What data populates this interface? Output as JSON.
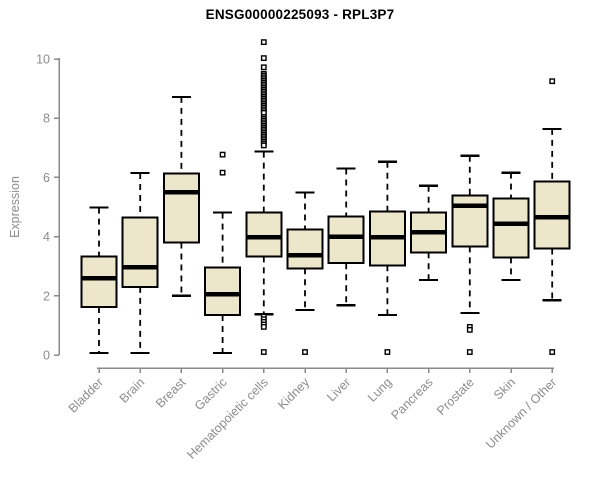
{
  "colors": {
    "background": "#ffffff",
    "box_fill": "#ece6cb",
    "box_stroke": "#000000",
    "median_color": "#000000",
    "whisker_color": "#000000",
    "outlier_stroke": "#000000",
    "outlier_fill": "#ffffff",
    "axis_color": "#8a8a8a",
    "tick_label_color": "#8c8c8c",
    "title_color": "#000000"
  },
  "chart_data": {
    "type": "box",
    "title": "ENSG00000225093 - RPL3P7",
    "xlabel": "",
    "ylabel": "Expression",
    "ylim": [
      0,
      10
    ],
    "yticks": [
      0,
      2,
      4,
      6,
      8,
      10
    ],
    "grid": false,
    "legend": false,
    "categories": [
      "Bladder",
      "Brain",
      "Breast",
      "Gastric",
      "Hematopoietic cells",
      "Kidney",
      "Liver",
      "Lung",
      "Pancreas",
      "Prostate",
      "Skin",
      "Unknown / Other"
    ],
    "series": [
      {
        "name": "Bladder",
        "low": 0.07,
        "q1": 1.62,
        "median": 2.6,
        "q3": 3.33,
        "high": 4.98,
        "outliers": []
      },
      {
        "name": "Brain",
        "low": 0.07,
        "q1": 2.3,
        "median": 2.96,
        "q3": 4.65,
        "high": 6.15,
        "outliers": []
      },
      {
        "name": "Breast",
        "low": 2.0,
        "q1": 3.8,
        "median": 5.5,
        "q3": 6.13,
        "high": 8.72,
        "outliers": []
      },
      {
        "name": "Gastric",
        "low": 0.07,
        "q1": 1.35,
        "median": 2.05,
        "q3": 2.96,
        "high": 4.81,
        "outliers": [
          6.77,
          6.16
        ]
      },
      {
        "name": "Hematopoietic cells",
        "low": 1.38,
        "q1": 3.33,
        "median": 3.97,
        "q3": 4.81,
        "high": 6.87,
        "outliers": [
          10.57,
          10.03,
          9.72,
          9.5,
          9.44,
          9.38,
          9.32,
          9.26,
          9.2,
          9.14,
          9.08,
          9.02,
          8.96,
          8.9,
          8.84,
          8.78,
          8.72,
          8.66,
          8.6,
          8.54,
          8.48,
          8.42,
          8.36,
          8.3,
          8.24,
          8.18,
          8.04,
          7.98,
          7.92,
          7.86,
          7.8,
          7.74,
          7.68,
          7.62,
          7.56,
          7.5,
          7.44,
          7.38,
          7.32,
          7.26,
          7.2,
          7.14,
          7.08,
          1.3,
          1.21,
          1.12,
          1.03,
          0.95,
          0.1
        ]
      },
      {
        "name": "Kidney",
        "low": 1.52,
        "q1": 2.93,
        "median": 3.37,
        "q3": 4.24,
        "high": 5.49,
        "outliers": [
          0.1
        ]
      },
      {
        "name": "Liver",
        "low": 1.68,
        "q1": 3.1,
        "median": 4.0,
        "q3": 4.68,
        "high": 6.3,
        "outliers": []
      },
      {
        "name": "Lung",
        "low": 1.35,
        "q1": 3.03,
        "median": 3.97,
        "q3": 4.85,
        "high": 6.53,
        "outliers": [
          0.1
        ]
      },
      {
        "name": "Pancreas",
        "low": 2.53,
        "q1": 3.47,
        "median": 4.14,
        "q3": 4.81,
        "high": 5.72,
        "outliers": []
      },
      {
        "name": "Prostate",
        "low": 1.42,
        "q1": 3.67,
        "median": 5.05,
        "q3": 5.39,
        "high": 6.73,
        "outliers": [
          0.95,
          0.85,
          0.1
        ]
      },
      {
        "name": "Skin",
        "low": 2.53,
        "q1": 3.3,
        "median": 4.44,
        "q3": 5.29,
        "high": 6.16,
        "outliers": []
      },
      {
        "name": "Unknown / Other",
        "low": 1.85,
        "q1": 3.6,
        "median": 4.65,
        "q3": 5.86,
        "high": 7.64,
        "outliers": [
          9.25,
          0.1
        ]
      }
    ]
  }
}
